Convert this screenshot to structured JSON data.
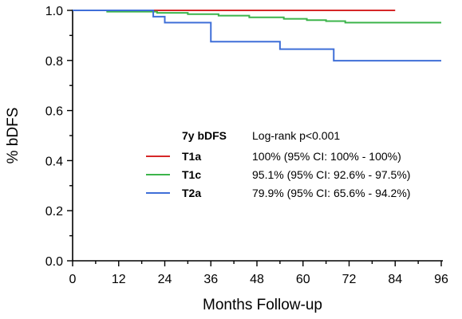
{
  "chart_data": {
    "type": "line",
    "step": true,
    "title": "",
    "xlabel": "Months Follow-up",
    "ylabel": "% bDFS",
    "xlim": [
      0,
      96
    ],
    "ylim": [
      0,
      1.0
    ],
    "xticks": [
      0,
      12,
      24,
      36,
      48,
      60,
      72,
      84,
      96
    ],
    "yticks": [
      0.0,
      0.2,
      0.4,
      0.6,
      0.8,
      1.0
    ],
    "xtick_labels": [
      "0",
      "12",
      "24",
      "36",
      "48",
      "60",
      "72",
      "84",
      "96"
    ],
    "ytick_labels": [
      "0.0",
      "0.2",
      "0.4",
      "0.6",
      "0.8",
      "1.0"
    ],
    "grid": false,
    "legend": {
      "placement": "center-right",
      "header_label": "7y bDFS",
      "header_value": "Log-rank p<0.001",
      "entries": [
        {
          "name": "T1a",
          "text": "100% (95% CI: 100% - 100%)",
          "color": "#d62728"
        },
        {
          "name": "T1c",
          "text": "95.1% (95% CI: 92.6% - 97.5%)",
          "color": "#3cb44b"
        },
        {
          "name": "T2a",
          "text": "79.9% (95% CI: 65.6% - 94.2%)",
          "color": "#3f6fd8"
        }
      ]
    },
    "series": [
      {
        "name": "T1a",
        "color": "#d62728",
        "points": [
          [
            0,
            1.0
          ],
          [
            84,
            1.0
          ]
        ]
      },
      {
        "name": "T1c",
        "color": "#3cb44b",
        "points": [
          [
            0,
            1.0
          ],
          [
            9,
            0.995
          ],
          [
            22,
            0.99
          ],
          [
            30,
            0.985
          ],
          [
            38,
            0.979
          ],
          [
            46,
            0.972
          ],
          [
            55,
            0.966
          ],
          [
            61,
            0.961
          ],
          [
            66,
            0.957
          ],
          [
            71,
            0.951
          ],
          [
            96,
            0.951
          ]
        ]
      },
      {
        "name": "T2a",
        "color": "#3f6fd8",
        "points": [
          [
            0,
            1.0
          ],
          [
            21,
            0.975
          ],
          [
            24,
            0.951
          ],
          [
            36,
            0.875
          ],
          [
            54,
            0.845
          ],
          [
            68,
            0.799
          ],
          [
            96,
            0.799
          ]
        ]
      }
    ]
  }
}
